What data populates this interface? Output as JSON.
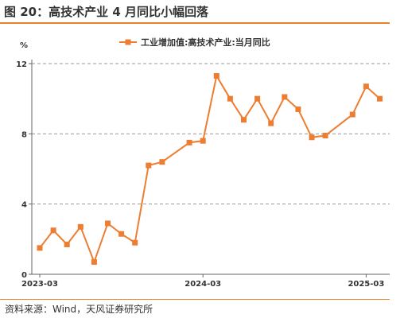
{
  "figure": {
    "title": "图 20：高技术产业 4 月同比小幅回落",
    "source": "资料来源：Wind，天风证券研究所"
  },
  "chart_data": {
    "type": "line",
    "y_unit": "%",
    "ylim": [
      0,
      12
    ],
    "y_ticks": [
      0,
      4,
      8,
      12
    ],
    "grid": "horizontal dashed at 4, 8, 12",
    "x_tick_labels": [
      "2023-03",
      "2024-03",
      "2025-03"
    ],
    "legend_position": "top-center",
    "color": "#ed7d31",
    "series": [
      {
        "name": "工业增加值:高技术产业:当月同比",
        "x": [
          "2023-03",
          "2023-04",
          "2023-05",
          "2023-06",
          "2023-07",
          "2023-08",
          "2023-09",
          "2023-10",
          "2023-11",
          "2023-12",
          "2024-01",
          "2024-02",
          "2024-03",
          "2024-04",
          "2024-05",
          "2024-06",
          "2024-07",
          "2024-08",
          "2024-09",
          "2024-10",
          "2024-11",
          "2024-12",
          "2025-01",
          "2025-02",
          "2025-03",
          "2025-04"
        ],
        "values": [
          1.5,
          2.5,
          1.7,
          2.7,
          0.7,
          2.9,
          2.3,
          1.8,
          6.2,
          6.4,
          null,
          7.5,
          7.6,
          11.3,
          10.0,
          8.8,
          10.0,
          8.6,
          10.1,
          9.4,
          7.8,
          7.9,
          null,
          9.1,
          10.7,
          10.0
        ]
      }
    ]
  }
}
